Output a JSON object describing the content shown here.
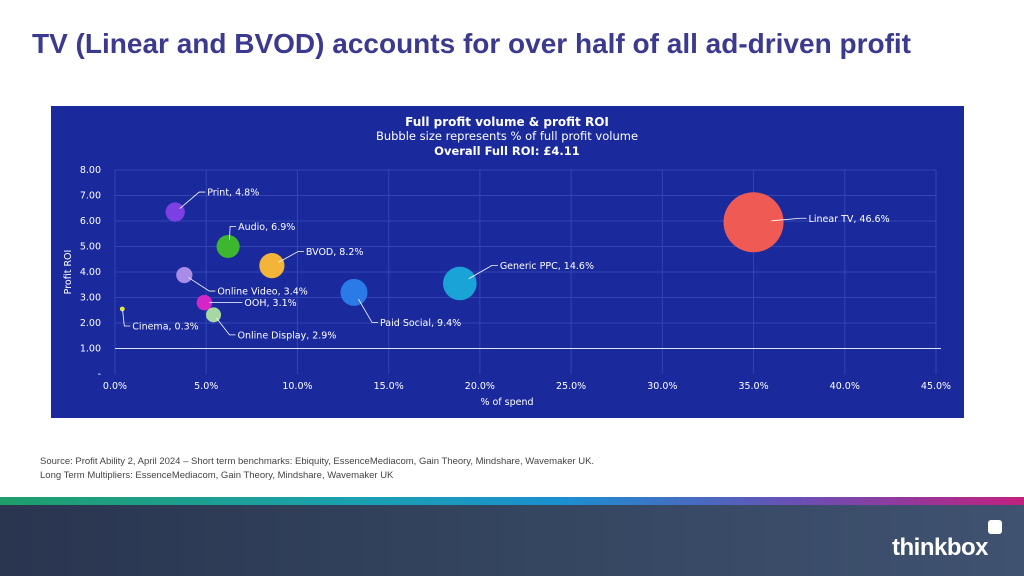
{
  "slide": {
    "title": "TV (Linear and BVOD) accounts for over half of all ad-driven profit",
    "source_line1": "Source: Profit Ability 2, April 2024 – Short term benchmarks: Ebiquity, EssenceMediacom, Gain Theory, Mindshare, Wavemaker UK.",
    "source_line2": "Long Term Multipliers: EssenceMediacom, Gain Theory, Mindshare, Wavemaker UK",
    "logo_text": "thinkbox"
  },
  "chart_data": {
    "type": "scatter",
    "title": "Full profit volume & profit ROI",
    "subtitle": "Bubble size represents % of full profit volume",
    "subtitle2": "Overall Full ROI: £4.11",
    "xlabel": "% of spend",
    "ylabel": "Profit ROI",
    "xlim": [
      0,
      45
    ],
    "ylim": [
      0,
      8
    ],
    "x_ticks": [
      "0.0%",
      "5.0%",
      "10.0%",
      "15.0%",
      "20.0%",
      "25.0%",
      "30.0%",
      "35.0%",
      "40.0%",
      "45.0%"
    ],
    "y_ticks": [
      "-",
      "1.00",
      "2.00",
      "3.00",
      "4.00",
      "5.00",
      "6.00",
      "7.00",
      "8.00"
    ],
    "reference_line_y": 1.0,
    "grid": true,
    "background_color": "#1a2a9c",
    "points": [
      {
        "label": "Print, 4.8%",
        "x": 3.3,
        "y": 6.35,
        "size": 4.8,
        "color": "#7b3fe4"
      },
      {
        "label": "Audio, 6.9%",
        "x": 6.2,
        "y": 5.0,
        "size": 6.9,
        "color": "#3db82e"
      },
      {
        "label": "BVOD, 8.2%",
        "x": 8.6,
        "y": 4.25,
        "size": 8.2,
        "color": "#f2b53a"
      },
      {
        "label": "Online Video, 3.4%",
        "x": 3.8,
        "y": 3.88,
        "size": 3.4,
        "color": "#a98ce8"
      },
      {
        "label": "OOH, 3.1%",
        "x": 4.9,
        "y": 2.8,
        "size": 3.1,
        "color": "#d426c6"
      },
      {
        "label": "Cinema, 0.3%",
        "x": 0.4,
        "y": 2.55,
        "size": 0.3,
        "color": "#e8e83a"
      },
      {
        "label": "Online Display, 2.9%",
        "x": 5.4,
        "y": 2.32,
        "size": 2.9,
        "color": "#a7d8a4"
      },
      {
        "label": "Paid Social, 9.4%",
        "x": 13.1,
        "y": 3.2,
        "size": 9.4,
        "color": "#2a7ae8"
      },
      {
        "label": "Generic PPC, 14.6%",
        "x": 18.9,
        "y": 3.55,
        "size": 14.6,
        "color": "#1aa3d6"
      },
      {
        "label": "Linear TV, 46.6%",
        "x": 35.0,
        "y": 5.95,
        "size": 46.6,
        "color": "#f05a55"
      }
    ]
  }
}
